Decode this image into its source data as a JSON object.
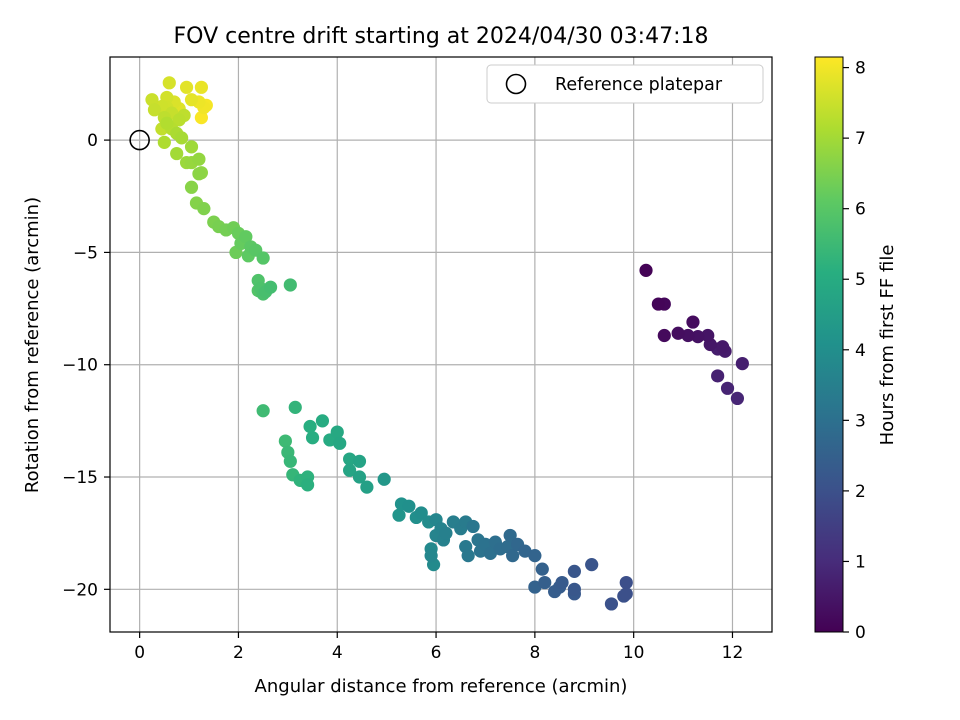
{
  "chart_data": {
    "type": "scatter",
    "title": "FOV centre drift starting at 2024/04/30 03:47:18",
    "xlabel": "Angular distance from reference (arcmin)",
    "ylabel": "Rotation from reference (arcmin)",
    "xlim": [
      -0.6,
      12.8
    ],
    "ylim": [
      -21.9,
      3.7
    ],
    "xticks": [
      0,
      2,
      4,
      6,
      8,
      10,
      12
    ],
    "yticks": [
      0,
      -5,
      -10,
      -15,
      -20
    ],
    "grid": true,
    "colorbar": {
      "label": "Hours from first FF file",
      "range": [
        0,
        8.15
      ],
      "ticks": [
        0,
        1,
        2,
        3,
        4,
        5,
        6,
        7,
        8
      ],
      "colormap": "viridis"
    },
    "legend": {
      "placement": "top-right",
      "entries": [
        "Reference platepar"
      ]
    },
    "reference_point": {
      "x": 0,
      "y": 0
    },
    "points": [
      {
        "x": 10.25,
        "y": -5.8,
        "t": 0.05
      },
      {
        "x": 10.5,
        "y": -7.3,
        "t": 0.1
      },
      {
        "x": 10.62,
        "y": -7.3,
        "t": 0.15
      },
      {
        "x": 10.62,
        "y": -8.7,
        "t": 0.2
      },
      {
        "x": 11.2,
        "y": -8.1,
        "t": 0.25
      },
      {
        "x": 10.9,
        "y": -8.6,
        "t": 0.3
      },
      {
        "x": 11.1,
        "y": -8.7,
        "t": 0.35
      },
      {
        "x": 11.3,
        "y": -8.75,
        "t": 0.4
      },
      {
        "x": 11.5,
        "y": -8.7,
        "t": 0.45
      },
      {
        "x": 11.55,
        "y": -9.1,
        "t": 0.5
      },
      {
        "x": 11.8,
        "y": -9.2,
        "t": 0.55
      },
      {
        "x": 11.85,
        "y": -9.4,
        "t": 0.6
      },
      {
        "x": 11.7,
        "y": -9.3,
        "t": 0.65
      },
      {
        "x": 12.2,
        "y": -9.95,
        "t": 0.7
      },
      {
        "x": 11.7,
        "y": -10.5,
        "t": 0.75
      },
      {
        "x": 11.9,
        "y": -11.05,
        "t": 0.8
      },
      {
        "x": 12.1,
        "y": -11.5,
        "t": 0.85
      },
      {
        "x": 9.85,
        "y": -19.7,
        "t": 1.95
      },
      {
        "x": 9.85,
        "y": -20.2,
        "t": 1.97
      },
      {
        "x": 9.8,
        "y": -20.3,
        "t": 2.0
      },
      {
        "x": 9.55,
        "y": -20.65,
        "t": 2.05
      },
      {
        "x": 9.15,
        "y": -18.9,
        "t": 2.1
      },
      {
        "x": 8.8,
        "y": -19.2,
        "t": 2.15
      },
      {
        "x": 8.8,
        "y": -20.0,
        "t": 2.2
      },
      {
        "x": 8.8,
        "y": -20.2,
        "t": 2.25
      },
      {
        "x": 8.55,
        "y": -19.7,
        "t": 2.3
      },
      {
        "x": 8.5,
        "y": -19.9,
        "t": 2.35
      },
      {
        "x": 8.4,
        "y": -20.1,
        "t": 2.4
      },
      {
        "x": 8.2,
        "y": -19.7,
        "t": 2.45
      },
      {
        "x": 8.15,
        "y": -19.1,
        "t": 2.5
      },
      {
        "x": 8.0,
        "y": -19.9,
        "t": 2.55
      },
      {
        "x": 8.0,
        "y": -18.5,
        "t": 2.6
      },
      {
        "x": 7.8,
        "y": -18.3,
        "t": 2.65
      },
      {
        "x": 7.65,
        "y": -18.0,
        "t": 2.7
      },
      {
        "x": 7.55,
        "y": -18.5,
        "t": 2.75
      },
      {
        "x": 7.5,
        "y": -17.6,
        "t": 2.8
      },
      {
        "x": 7.45,
        "y": -18.1,
        "t": 2.85
      },
      {
        "x": 7.3,
        "y": -18.2,
        "t": 2.9
      },
      {
        "x": 7.2,
        "y": -17.9,
        "t": 2.95
      },
      {
        "x": 7.1,
        "y": -18.4,
        "t": 3.0
      },
      {
        "x": 7.0,
        "y": -18.0,
        "t": 3.05
      },
      {
        "x": 6.9,
        "y": -18.3,
        "t": 3.1
      },
      {
        "x": 6.85,
        "y": -17.8,
        "t": 3.15
      },
      {
        "x": 6.75,
        "y": -17.2,
        "t": 3.2
      },
      {
        "x": 6.65,
        "y": -18.5,
        "t": 3.25
      },
      {
        "x": 6.6,
        "y": -18.1,
        "t": 3.3
      },
      {
        "x": 6.6,
        "y": -17.0,
        "t": 3.35
      },
      {
        "x": 6.5,
        "y": -17.3,
        "t": 3.4
      },
      {
        "x": 6.35,
        "y": -17.0,
        "t": 3.45
      },
      {
        "x": 6.2,
        "y": -17.5,
        "t": 3.5
      },
      {
        "x": 6.15,
        "y": -17.8,
        "t": 3.55
      },
      {
        "x": 6.1,
        "y": -17.3,
        "t": 3.6
      },
      {
        "x": 6.0,
        "y": -17.6,
        "t": 3.65
      },
      {
        "x": 6.0,
        "y": -16.9,
        "t": 3.7
      },
      {
        "x": 5.9,
        "y": -18.5,
        "t": 3.75
      },
      {
        "x": 5.9,
        "y": -18.2,
        "t": 3.8
      },
      {
        "x": 5.95,
        "y": -18.9,
        "t": 3.85
      },
      {
        "x": 5.85,
        "y": -17.0,
        "t": 3.9
      },
      {
        "x": 5.7,
        "y": -16.6,
        "t": 3.95
      },
      {
        "x": 5.6,
        "y": -16.8,
        "t": 4.0
      },
      {
        "x": 5.45,
        "y": -16.3,
        "t": 4.05
      },
      {
        "x": 5.3,
        "y": -16.2,
        "t": 4.1
      },
      {
        "x": 5.25,
        "y": -16.7,
        "t": 4.2
      },
      {
        "x": 4.95,
        "y": -15.1,
        "t": 4.3
      },
      {
        "x": 4.6,
        "y": -15.45,
        "t": 4.6
      },
      {
        "x": 4.45,
        "y": -15.0,
        "t": 4.65
      },
      {
        "x": 4.45,
        "y": -14.3,
        "t": 4.7
      },
      {
        "x": 4.25,
        "y": -14.7,
        "t": 4.75
      },
      {
        "x": 4.25,
        "y": -14.2,
        "t": 4.8
      },
      {
        "x": 4.05,
        "y": -13.5,
        "t": 4.85
      },
      {
        "x": 4.0,
        "y": -13.0,
        "t": 4.9
      },
      {
        "x": 3.85,
        "y": -13.35,
        "t": 4.95
      },
      {
        "x": 3.7,
        "y": -12.5,
        "t": 5.0
      },
      {
        "x": 3.5,
        "y": -13.25,
        "t": 5.05
      },
      {
        "x": 3.45,
        "y": -12.75,
        "t": 5.1
      },
      {
        "x": 3.4,
        "y": -15.35,
        "t": 5.15
      },
      {
        "x": 3.4,
        "y": -15.0,
        "t": 5.2
      },
      {
        "x": 3.25,
        "y": -15.15,
        "t": 5.25
      },
      {
        "x": 3.15,
        "y": -11.9,
        "t": 5.3
      },
      {
        "x": 3.1,
        "y": -14.9,
        "t": 5.35
      },
      {
        "x": 3.05,
        "y": -14.3,
        "t": 5.4
      },
      {
        "x": 3.0,
        "y": -13.9,
        "t": 5.45
      },
      {
        "x": 2.95,
        "y": -13.4,
        "t": 5.5
      },
      {
        "x": 2.5,
        "y": -12.05,
        "t": 5.55
      },
      {
        "x": 3.05,
        "y": -6.45,
        "t": 5.6
      },
      {
        "x": 2.65,
        "y": -6.55,
        "t": 5.65
      },
      {
        "x": 2.55,
        "y": -6.75,
        "t": 5.7
      },
      {
        "x": 2.5,
        "y": -6.85,
        "t": 5.75
      },
      {
        "x": 2.45,
        "y": -6.6,
        "t": 5.8
      },
      {
        "x": 2.4,
        "y": -6.25,
        "t": 5.85
      },
      {
        "x": 2.4,
        "y": -6.7,
        "t": 5.9
      },
      {
        "x": 2.5,
        "y": -5.25,
        "t": 5.95
      },
      {
        "x": 2.35,
        "y": -4.9,
        "t": 6.0
      },
      {
        "x": 2.25,
        "y": -4.75,
        "t": 6.05
      },
      {
        "x": 2.2,
        "y": -5.15,
        "t": 6.1
      },
      {
        "x": 2.15,
        "y": -4.3,
        "t": 6.15
      },
      {
        "x": 2.05,
        "y": -4.6,
        "t": 6.2
      },
      {
        "x": 2.0,
        "y": -4.15,
        "t": 6.25
      },
      {
        "x": 1.95,
        "y": -5.0,
        "t": 6.3
      },
      {
        "x": 1.9,
        "y": -3.9,
        "t": 6.35
      },
      {
        "x": 1.75,
        "y": -4.0,
        "t": 6.4
      },
      {
        "x": 1.6,
        "y": -3.85,
        "t": 6.45
      },
      {
        "x": 1.5,
        "y": -3.65,
        "t": 6.5
      },
      {
        "x": 1.3,
        "y": -3.05,
        "t": 6.55
      },
      {
        "x": 1.15,
        "y": -2.8,
        "t": 6.6
      },
      {
        "x": 1.05,
        "y": -2.1,
        "t": 6.65
      },
      {
        "x": 1.2,
        "y": -1.5,
        "t": 6.7
      },
      {
        "x": 1.25,
        "y": -1.45,
        "t": 6.75
      },
      {
        "x": 1.2,
        "y": -0.85,
        "t": 6.8
      },
      {
        "x": 1.05,
        "y": -1.0,
        "t": 6.85
      },
      {
        "x": 0.95,
        "y": -1.0,
        "t": 6.9
      },
      {
        "x": 1.05,
        "y": -0.3,
        "t": 6.95
      },
      {
        "x": 0.75,
        "y": -0.6,
        "t": 7.0
      },
      {
        "x": 0.85,
        "y": 0.1,
        "t": 7.05
      },
      {
        "x": 0.75,
        "y": 0.3,
        "t": 7.1
      },
      {
        "x": 0.5,
        "y": -0.1,
        "t": 7.15
      },
      {
        "x": 0.55,
        "y": 0.75,
        "t": 7.2
      },
      {
        "x": 0.65,
        "y": 0.5,
        "t": 7.25
      },
      {
        "x": 0.8,
        "y": 0.9,
        "t": 7.3
      },
      {
        "x": 0.9,
        "y": 1.1,
        "t": 7.35
      },
      {
        "x": 0.45,
        "y": 0.5,
        "t": 7.4
      },
      {
        "x": 0.3,
        "y": 1.35,
        "t": 7.45
      },
      {
        "x": 0.25,
        "y": 1.8,
        "t": 7.5
      },
      {
        "x": 0.45,
        "y": 1.5,
        "t": 7.55
      },
      {
        "x": 0.55,
        "y": 1.9,
        "t": 7.6
      },
      {
        "x": 0.6,
        "y": 2.55,
        "t": 7.65
      },
      {
        "x": 0.7,
        "y": 1.7,
        "t": 7.7
      },
      {
        "x": 0.8,
        "y": 1.4,
        "t": 7.75
      },
      {
        "x": 0.95,
        "y": 2.35,
        "t": 7.8
      },
      {
        "x": 1.05,
        "y": 1.8,
        "t": 7.85
      },
      {
        "x": 1.25,
        "y": 2.35,
        "t": 7.9
      },
      {
        "x": 1.2,
        "y": 1.7,
        "t": 7.95
      },
      {
        "x": 1.3,
        "y": 1.45,
        "t": 8.0
      },
      {
        "x": 1.35,
        "y": 1.55,
        "t": 8.05
      },
      {
        "x": 1.25,
        "y": 1.0,
        "t": 8.1
      },
      {
        "x": 0.5,
        "y": 1.0,
        "t": 7.35
      },
      {
        "x": 0.65,
        "y": 1.2,
        "t": 7.45
      },
      {
        "x": 0.55,
        "y": 1.45,
        "t": 7.58
      }
    ]
  }
}
